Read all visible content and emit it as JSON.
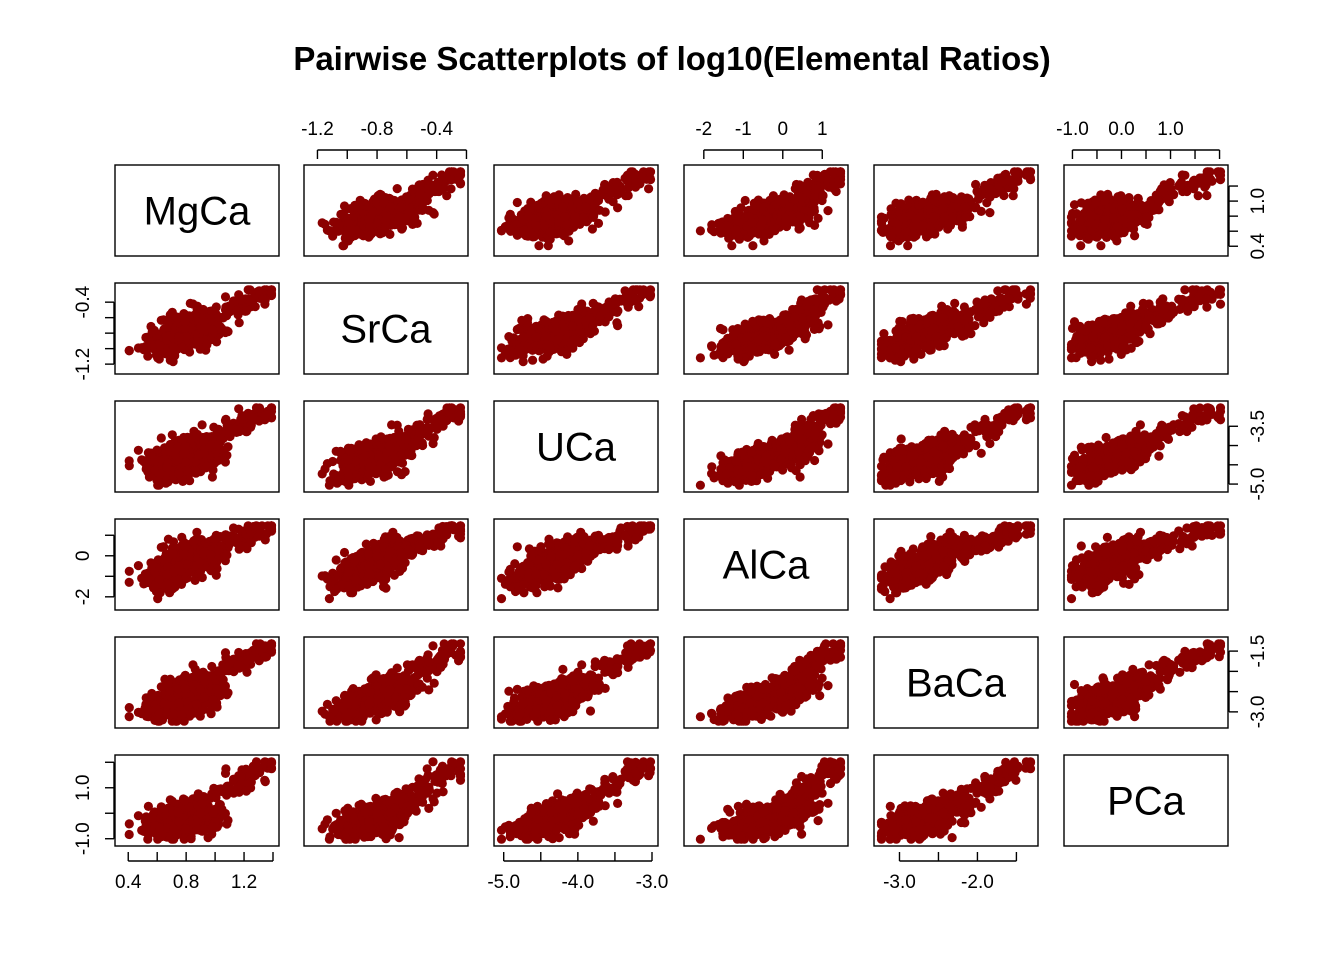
{
  "chart_data": {
    "type": "scatter",
    "title": "Pairwise Scatterplots of log10(Elemental Ratios)",
    "variables": [
      "MgCa",
      "SrCa",
      "UCa",
      "AlCa",
      "BaCa",
      "PCa"
    ],
    "ranges": [
      [
        0.35,
        1.4
      ],
      [
        -1.25,
        -0.23
      ],
      [
        -5.05,
        -3.0
      ],
      [
        -2.35,
        1.5
      ],
      [
        -3.25,
        -1.3
      ],
      [
        -1.05,
        2.05
      ]
    ],
    "clusters": [
      [
        0.75,
        -0.85,
        -4.45,
        -0.55,
        -2.75,
        -0.3
      ],
      [
        0.8,
        -0.75,
        -4.2,
        0.0,
        -2.55,
        0.0
      ],
      [
        0.7,
        -0.95,
        -4.65,
        -1.1,
        -2.95,
        -0.55
      ],
      [
        0.85,
        -0.65,
        -4.0,
        0.35,
        -2.4,
        0.2
      ],
      [
        0.65,
        -0.9,
        -4.3,
        -0.8,
        -2.8,
        -0.2
      ],
      [
        0.9,
        -0.8,
        -4.4,
        -0.3,
        -2.65,
        -0.4
      ]
    ],
    "upper_tail": [
      1.38,
      -0.25,
      -3.02,
      1.45,
      -1.32,
      2.0
    ],
    "point_color": "#8B0000",
    "axes": {
      "top": [
        {
          "col": 1,
          "ticks": [
            -1.2,
            -1.0,
            -0.8,
            -0.6,
            -0.4,
            -0.2
          ],
          "labels": [
            "-1.2",
            "-0.8",
            "-0.4"
          ]
        },
        {
          "col": 3,
          "ticks": [
            -2,
            -1,
            0,
            1
          ],
          "labels": [
            "-2",
            "-1",
            "0",
            "1"
          ]
        },
        {
          "col": 5,
          "ticks": [
            -1.0,
            -0.5,
            0.0,
            0.5,
            1.0,
            1.5,
            2.0
          ],
          "labels": [
            "-1.0",
            "0.0",
            "1.0"
          ]
        }
      ],
      "bottom": [
        {
          "col": 0,
          "ticks": [
            0.4,
            0.6,
            0.8,
            1.0,
            1.2,
            1.4
          ],
          "labels": [
            "0.4",
            "0.8",
            "1.2"
          ]
        },
        {
          "col": 2,
          "ticks": [
            -5.0,
            -4.5,
            -4.0,
            -3.5,
            -3.0
          ],
          "labels": [
            "-5.0",
            "-4.0",
            "-3.0"
          ]
        },
        {
          "col": 4,
          "ticks": [
            -3.0,
            -2.5,
            -2.0,
            -1.5
          ],
          "labels": [
            "-3.0",
            "-2.0"
          ]
        }
      ],
      "left": [
        {
          "row": 1,
          "ticks": [
            -1.2,
            -1.0,
            -0.8,
            -0.6,
            -0.4
          ],
          "labels": [
            "-1.2",
            "-0.4"
          ]
        },
        {
          "row": 3,
          "ticks": [
            -2,
            -1,
            0,
            1
          ],
          "labels": [
            "-2",
            "0"
          ]
        },
        {
          "row": 5,
          "ticks": [
            -1.0,
            0.0,
            1.0,
            2.0
          ],
          "labels": [
            "-1.0",
            "1.0"
          ]
        }
      ],
      "right": [
        {
          "row": 0,
          "ticks": [
            0.4,
            0.6,
            0.8,
            1.0,
            1.2
          ],
          "labels": [
            "0.4",
            "1.0"
          ]
        },
        {
          "row": 2,
          "ticks": [
            -5.0,
            -4.5,
            -4.0,
            -3.5
          ],
          "labels": [
            "-5.0",
            "-3.5"
          ]
        },
        {
          "row": 4,
          "ticks": [
            -3.0,
            -2.5,
            -2.0,
            -1.5
          ],
          "labels": [
            "-3.0",
            "-1.5"
          ]
        }
      ]
    },
    "grid": false,
    "legend": "none"
  }
}
